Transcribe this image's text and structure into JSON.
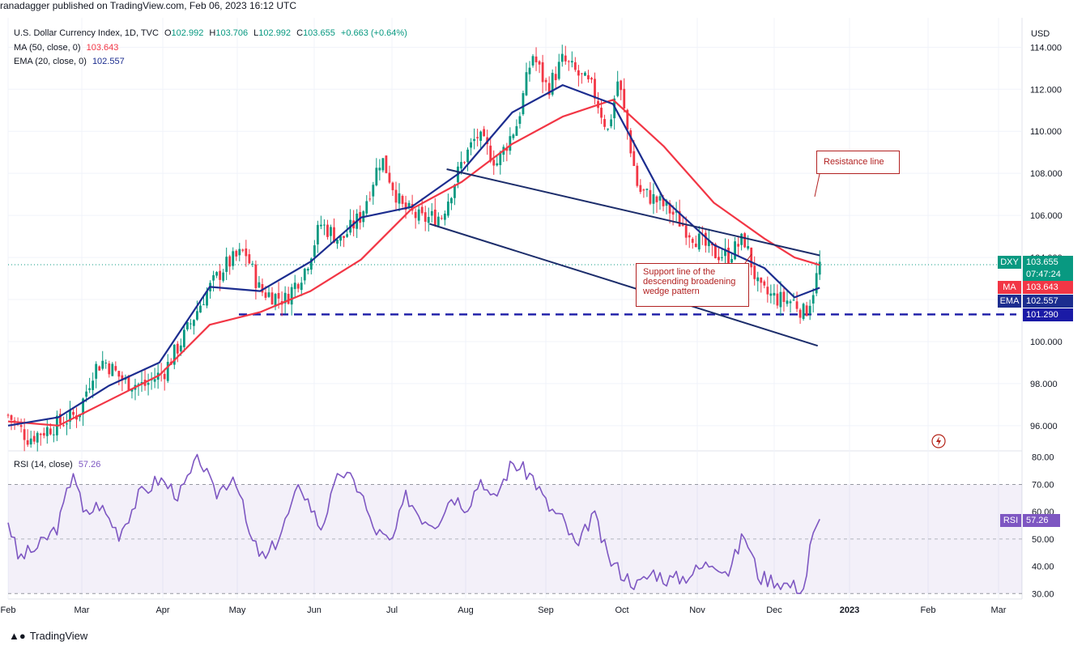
{
  "byline": "ranadagger published on TradingView.com, Feb 06, 2023 16:12 UTC",
  "legend": {
    "symbol": "U.S. Dollar Currency Index, 1D, TVC",
    "o_label": "O",
    "o": "102.992",
    "h_label": "H",
    "h": "103.706",
    "l_label": "L",
    "l": "102.992",
    "c_label": "C",
    "c": "103.655",
    "change": "+0.663 (+0.64%)",
    "ma_label": "MA (50, close, 0)",
    "ma_value": "103.643",
    "ema_label": "EMA (20, close, 0)",
    "ema_value": "102.557",
    "rsi_label": "RSI (14, close)",
    "rsi_value": "57.26"
  },
  "badges": {
    "dxy_label": "DXY",
    "dxy_value": "103.655",
    "dxy_time": "07:47:24",
    "ma_label": "MA",
    "ma_value": "103.643",
    "ema_label": "EMA",
    "ema_value": "102.557",
    "support_value": "101.290",
    "rsi_label": "RSI",
    "rsi_value": "57.26"
  },
  "annotations": {
    "resistance": "Resistance line",
    "support_1": "Support line of the",
    "support_2": "descending broadening",
    "support_3": "wedge pattern"
  },
  "brand": "TradingView",
  "colors": {
    "up": "#089981",
    "down": "#f23645",
    "ma": "#f23645",
    "ema": "#1c2d8f",
    "rsi": "#7e57c2",
    "support": "#1a1aa6",
    "trend": "#1c2d6b",
    "annot": "#b22222"
  },
  "chart_data": {
    "type": "candlestick",
    "currency": "USD",
    "price_axis": {
      "ticks": [
        "114.000",
        "112.000",
        "110.000",
        "108.000",
        "106.000",
        "104.000",
        "102.000",
        "100.000",
        "98.000",
        "96.000"
      ],
      "range": [
        94.8,
        115.4
      ]
    },
    "rsi_axis": {
      "ticks": [
        "80.00",
        "70.00",
        "60.00",
        "50.00",
        "40.00",
        "30.00"
      ],
      "range": [
        28,
        82
      ],
      "band": [
        30,
        70
      ]
    },
    "x_ticks": [
      "Feb",
      "Mar",
      "Apr",
      "May",
      "Jun",
      "Jul",
      "Aug",
      "Sep",
      "Oct",
      "Nov",
      "Dec",
      "2023",
      "Feb",
      "Mar"
    ],
    "support_level": 101.29,
    "resistance_line": [
      [
        0.435,
        108.2
      ],
      [
        0.805,
        104.1
      ]
    ],
    "support_line": [
      [
        0.418,
        105.6
      ],
      [
        0.803,
        99.8
      ]
    ],
    "close_path": [
      [
        0,
        96.5
      ],
      [
        0.02,
        95.4
      ],
      [
        0.05,
        96.1
      ],
      [
        0.07,
        96.6
      ],
      [
        0.085,
        98.7
      ],
      [
        0.095,
        99.1
      ],
      [
        0.115,
        98.1
      ],
      [
        0.135,
        97.9
      ],
      [
        0.155,
        98.6
      ],
      [
        0.175,
        100.3
      ],
      [
        0.195,
        102.2
      ],
      [
        0.215,
        103.6
      ],
      [
        0.235,
        104.3
      ],
      [
        0.25,
        102.4
      ],
      [
        0.275,
        102.0
      ],
      [
        0.295,
        103.5
      ],
      [
        0.31,
        105.6
      ],
      [
        0.33,
        104.8
      ],
      [
        0.35,
        106.0
      ],
      [
        0.37,
        108.8
      ],
      [
        0.39,
        106.4
      ],
      [
        0.41,
        105.8
      ],
      [
        0.43,
        106.0
      ],
      [
        0.45,
        108.5
      ],
      [
        0.465,
        109.8
      ],
      [
        0.485,
        108.5
      ],
      [
        0.505,
        110.4
      ],
      [
        0.52,
        113.7
      ],
      [
        0.535,
        112.0
      ],
      [
        0.55,
        113.4
      ],
      [
        0.565,
        112.7
      ],
      [
        0.58,
        112.0
      ],
      [
        0.595,
        110.0
      ],
      [
        0.605,
        112.5
      ],
      [
        0.61,
        111.2
      ],
      [
        0.625,
        107.2
      ],
      [
        0.64,
        106.8
      ],
      [
        0.655,
        106.3
      ],
      [
        0.67,
        105.5
      ],
      [
        0.685,
        104.8
      ],
      [
        0.7,
        104.2
      ],
      [
        0.715,
        104.1
      ],
      [
        0.73,
        104.9
      ],
      [
        0.745,
        102.4
      ],
      [
        0.765,
        102.0
      ],
      [
        0.78,
        101.9
      ],
      [
        0.79,
        101.3
      ],
      [
        0.797,
        102.2
      ],
      [
        0.805,
        103.66
      ]
    ],
    "ma50_path": [
      [
        0,
        96.2
      ],
      [
        0.05,
        96.0
      ],
      [
        0.1,
        97.2
      ],
      [
        0.15,
        98.4
      ],
      [
        0.2,
        100.8
      ],
      [
        0.25,
        101.4
      ],
      [
        0.3,
        102.4
      ],
      [
        0.35,
        103.9
      ],
      [
        0.4,
        106.3
      ],
      [
        0.45,
        107.6
      ],
      [
        0.5,
        109.4
      ],
      [
        0.55,
        110.7
      ],
      [
        0.6,
        111.5
      ],
      [
        0.65,
        109.3
      ],
      [
        0.7,
        106.6
      ],
      [
        0.75,
        104.9
      ],
      [
        0.78,
        104.0
      ],
      [
        0.805,
        103.64
      ]
    ],
    "ema20_path": [
      [
        0,
        96.0
      ],
      [
        0.05,
        96.4
      ],
      [
        0.1,
        97.9
      ],
      [
        0.15,
        99.0
      ],
      [
        0.2,
        102.6
      ],
      [
        0.25,
        102.4
      ],
      [
        0.3,
        103.8
      ],
      [
        0.35,
        105.9
      ],
      [
        0.4,
        106.4
      ],
      [
        0.45,
        108.1
      ],
      [
        0.5,
        110.9
      ],
      [
        0.55,
        112.2
      ],
      [
        0.6,
        111.3
      ],
      [
        0.65,
        106.8
      ],
      [
        0.7,
        104.6
      ],
      [
        0.75,
        103.5
      ],
      [
        0.78,
        102.1
      ],
      [
        0.805,
        102.56
      ]
    ],
    "rsi_path": [
      [
        0,
        57
      ],
      [
        0.01,
        43
      ],
      [
        0.03,
        47
      ],
      [
        0.05,
        55
      ],
      [
        0.065,
        76
      ],
      [
        0.075,
        58
      ],
      [
        0.09,
        63
      ],
      [
        0.11,
        52
      ],
      [
        0.13,
        66
      ],
      [
        0.15,
        72
      ],
      [
        0.17,
        66
      ],
      [
        0.19,
        80
      ],
      [
        0.205,
        66
      ],
      [
        0.225,
        74
      ],
      [
        0.24,
        50
      ],
      [
        0.255,
        42
      ],
      [
        0.27,
        52
      ],
      [
        0.29,
        70
      ],
      [
        0.31,
        54
      ],
      [
        0.33,
        75
      ],
      [
        0.35,
        68
      ],
      [
        0.36,
        55
      ],
      [
        0.38,
        48
      ],
      [
        0.395,
        66
      ],
      [
        0.41,
        58
      ],
      [
        0.425,
        56
      ],
      [
        0.44,
        66
      ],
      [
        0.455,
        62
      ],
      [
        0.47,
        73
      ],
      [
        0.48,
        63
      ],
      [
        0.5,
        78
      ],
      [
        0.52,
        73
      ],
      [
        0.535,
        62
      ],
      [
        0.55,
        57
      ],
      [
        0.565,
        46
      ],
      [
        0.58,
        60
      ],
      [
        0.595,
        43
      ],
      [
        0.61,
        37
      ],
      [
        0.625,
        33
      ],
      [
        0.64,
        38
      ],
      [
        0.655,
        35
      ],
      [
        0.67,
        36
      ],
      [
        0.685,
        39
      ],
      [
        0.7,
        42
      ],
      [
        0.715,
        38
      ],
      [
        0.73,
        52
      ],
      [
        0.745,
        36
      ],
      [
        0.76,
        35
      ],
      [
        0.775,
        33
      ],
      [
        0.79,
        32
      ],
      [
        0.797,
        51
      ],
      [
        0.805,
        57.26
      ]
    ]
  }
}
